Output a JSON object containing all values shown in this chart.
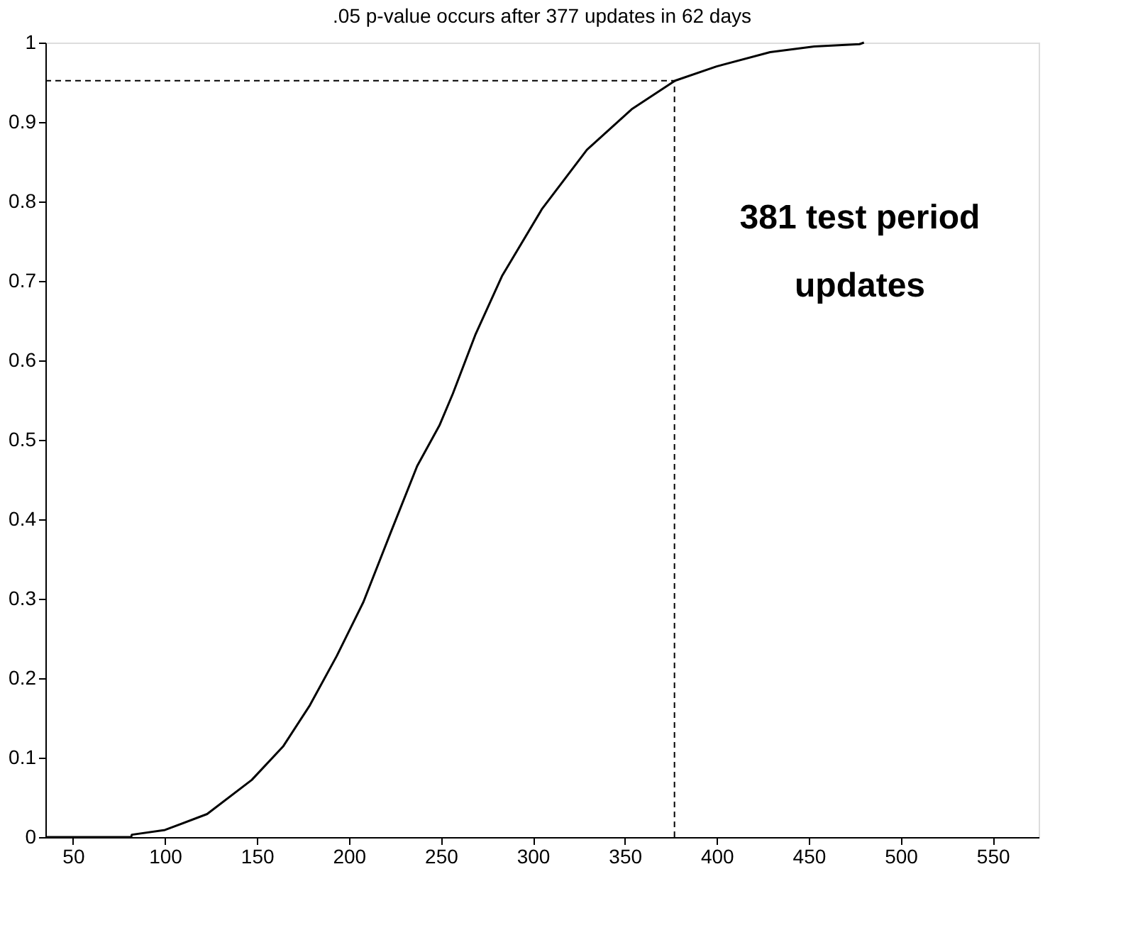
{
  "chart_data": {
    "type": "line",
    "title": ".05 p-value occurs after 377 updates in 62 days",
    "x": [
      35,
      81.6,
      82,
      100,
      122.9,
      147.2,
      164.2,
      178.8,
      193.4,
      207.9,
      222.5,
      237.1,
      249.2,
      256.5,
      268.7,
      283.2,
      305.1,
      329.4,
      353.7,
      377.3,
      399.9,
      429,
      453,
      477.6,
      480
    ],
    "series": [
      {
        "color": "#000000",
        "values": [
          0,
          0,
          0.003,
          0.009,
          0.029,
          0.072,
          0.114,
          0.166,
          0.228,
          0.296,
          0.382,
          0.467,
          0.518,
          0.558,
          0.632,
          0.706,
          0.791,
          0.865,
          0.916,
          0.952,
          0.97,
          0.988,
          0.995,
          0.998,
          1
        ]
      }
    ],
    "xlim": [
      35,
      575
    ],
    "xticks": [
      50,
      100,
      150,
      200,
      250,
      300,
      350,
      400,
      450,
      500,
      550
    ],
    "ylim": [
      0,
      1
    ],
    "yticks": [
      0,
      0.1,
      0.2,
      0.3,
      0.4,
      0.5,
      0.6,
      0.7,
      0.8,
      0.9,
      1
    ],
    "ref_lines": [
      {
        "axis": "y",
        "value": 0.952,
        "line_style": "dashed",
        "color": "#000000"
      },
      {
        "axis": "x",
        "value": 377,
        "line_style": "dashed",
        "color": "#000000"
      }
    ],
    "annotations": [
      "381 test period\nupdates"
    ],
    "grid": false,
    "marker": "none",
    "line_style": "solid"
  }
}
